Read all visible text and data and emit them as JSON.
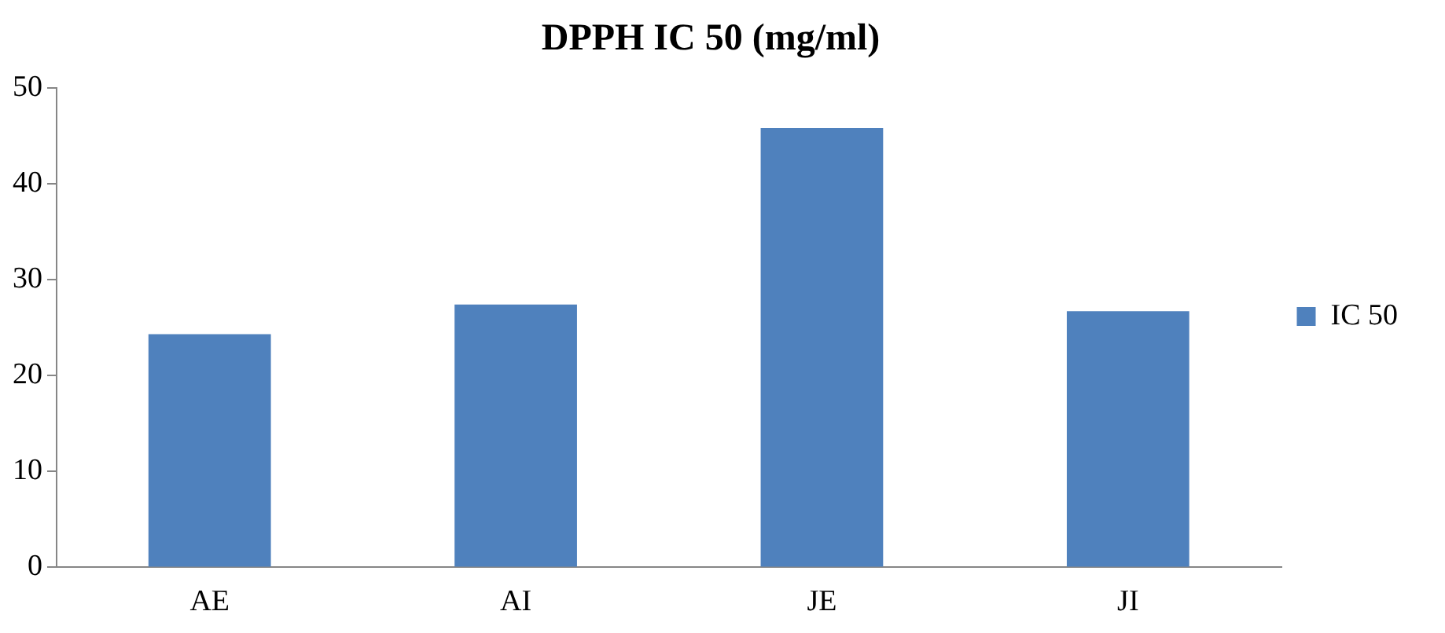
{
  "chart_data": {
    "type": "bar",
    "title": "DPPH IC 50 (mg/ml)",
    "categories": [
      "AE",
      "AI",
      "JE",
      "JI"
    ],
    "series": [
      {
        "name": "IC 50",
        "color": "#4f81bd",
        "values": [
          24.3,
          27.4,
          45.8,
          26.7
        ]
      }
    ],
    "ylim": [
      0,
      50
    ],
    "yticks": [
      0,
      10,
      20,
      30,
      40,
      50
    ],
    "grid": false,
    "legend": "right"
  }
}
